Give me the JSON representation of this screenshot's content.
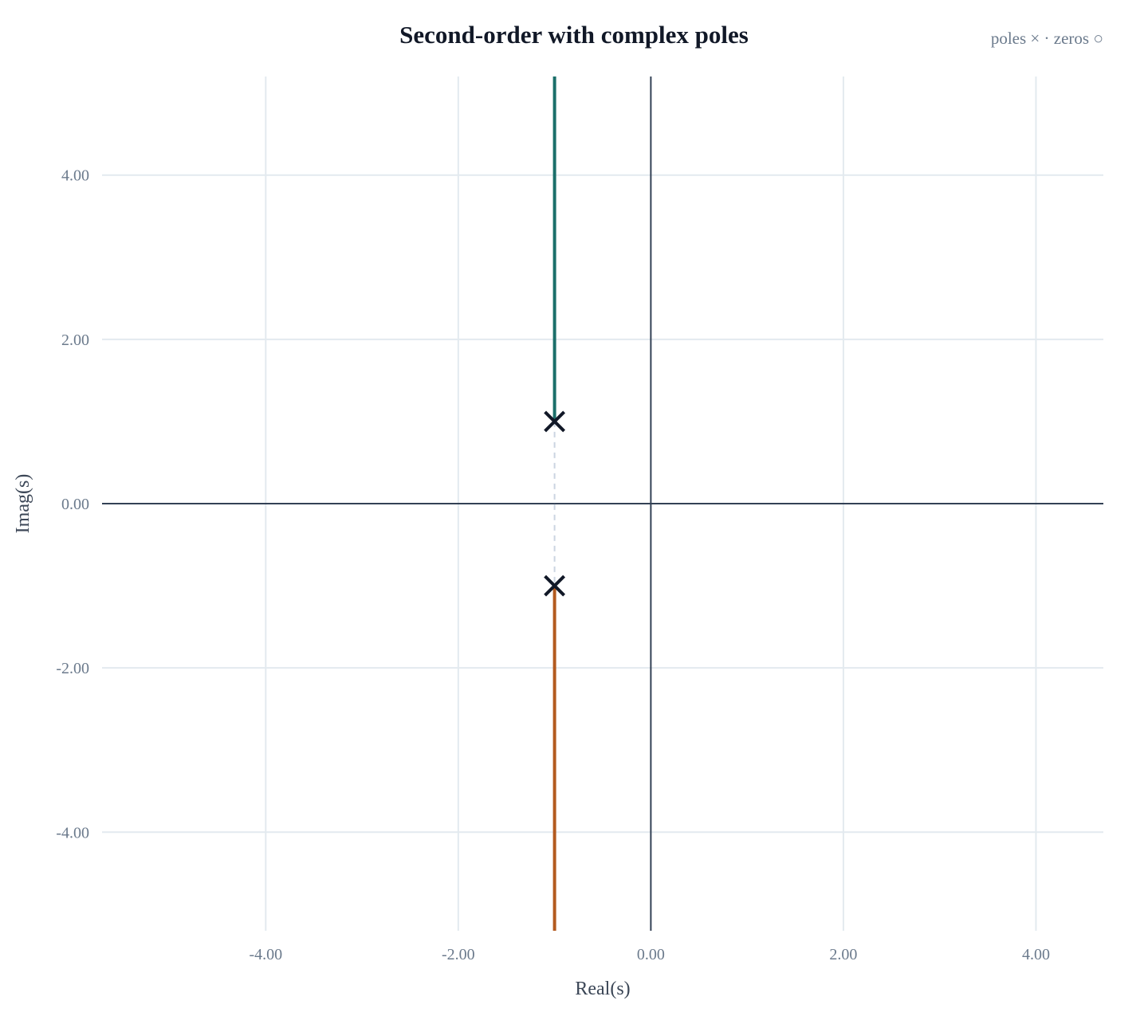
{
  "chart_data": {
    "type": "line",
    "title": "Second-order with complex poles",
    "legend_note": "poles × · zeros ○",
    "xlabel": "Real(s)",
    "ylabel": "Imag(s)",
    "xlim": [
      -5.7,
      4.7
    ],
    "ylim": [
      -5.2,
      5.2
    ],
    "x_ticks": [
      -4,
      -2,
      0,
      2,
      4
    ],
    "y_ticks": [
      -4,
      -2,
      0,
      2,
      4
    ],
    "x_tick_labels": [
      "-4.00",
      "-2.00",
      "0.00",
      "2.00",
      "4.00"
    ],
    "y_tick_labels": [
      "-4.00",
      "-2.00",
      "0.00",
      "2.00",
      "4.00"
    ],
    "grid": true,
    "series": [
      {
        "color": "#1b6f6a",
        "x": [
          -1,
          -1
        ],
        "y": [
          1,
          5.2
        ]
      },
      {
        "color": "#b35a1f",
        "x": [
          -1,
          -1
        ],
        "y": [
          -1,
          -5.2
        ]
      }
    ],
    "connector": {
      "color": "#cbd5e1",
      "x": [
        -1,
        -1
      ],
      "y": [
        1,
        -1
      ]
    },
    "poles": [
      {
        "x": -1,
        "y": 1
      },
      {
        "x": -1,
        "y": -1
      }
    ],
    "zeros": [],
    "colors": {
      "grid": "#e3eaef",
      "axis": "#334155",
      "pole": "#111827",
      "tick": "#6b7a8c"
    }
  }
}
